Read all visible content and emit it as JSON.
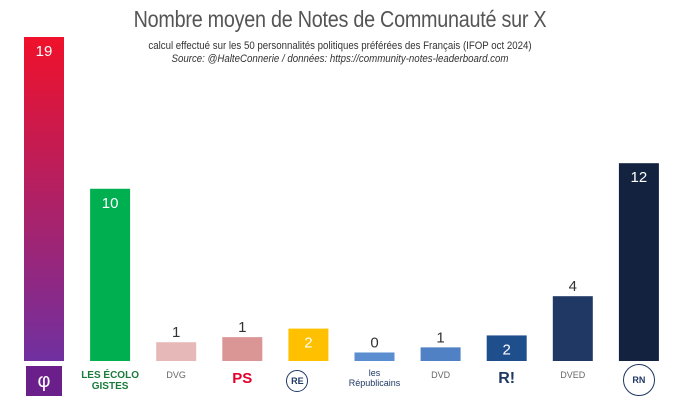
{
  "chart_data": {
    "type": "bar",
    "title": "Nombre moyen de Notes de Communauté sur X",
    "subtitle": "calcul effectué sur les 50 personnalités politiques préférées des Français (IFOP oct 2024)",
    "source": "Source: @HalteConnerie / données: https://community-notes-leaderboard.com",
    "categories": [
      "LFI",
      "Les Écologistes",
      "DVG",
      "PS",
      "RE",
      "LR",
      "DVD",
      "Reconquête",
      "DVED",
      "RN"
    ],
    "category_labels": [
      "φ",
      "LES ÉCOLO GISTES",
      "DVG",
      "PS",
      "RE",
      "les Républicains",
      "DVD",
      "R!",
      "DVED",
      "RN"
    ],
    "values": [
      19.0,
      10.1,
      1.1,
      1.4,
      1.9,
      0.5,
      0.8,
      1.5,
      3.8,
      11.6
    ],
    "labels": [
      "19",
      "10",
      "1",
      "1",
      "2",
      "0",
      "1",
      "2",
      "4",
      "12"
    ],
    "colors": [
      "#e8112d",
      "#00b050",
      "#e6b8b7",
      "#d99694",
      "#ffc000",
      "#5b8ed0",
      "#4f81c4",
      "#1f4e8c",
      "#1f3864",
      "#13233f"
    ],
    "label_inside": [
      true,
      true,
      false,
      false,
      true,
      false,
      false,
      true,
      false,
      true
    ],
    "ylim": [
      0,
      19
    ],
    "xlabel": "",
    "ylabel": "",
    "grid": false
  }
}
